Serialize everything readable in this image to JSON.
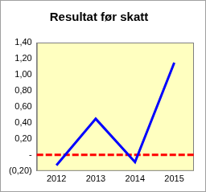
{
  "chart_data": {
    "type": "line",
    "title": "Resultat før skatt",
    "categories": [
      "2012",
      "2013",
      "2014",
      "2015"
    ],
    "values": [
      -0.13,
      0.45,
      -0.09,
      1.15
    ],
    "color": "#0000ff",
    "baseline": 0,
    "ylim": [
      -0.2,
      1.4
    ],
    "yticks": [
      {
        "value": -0.2,
        "label": "(0,20)"
      },
      {
        "value": 0,
        "label": "-"
      },
      {
        "value": 0.2,
        "label": "0,20"
      },
      {
        "value": 0.4,
        "label": "0,40"
      },
      {
        "value": 0.6,
        "label": "0,60"
      },
      {
        "value": 0.8,
        "label": "0,80"
      },
      {
        "value": 1.0,
        "label": "1,00"
      },
      {
        "value": 1.2,
        "label": "1,20"
      },
      {
        "value": 1.4,
        "label": "1,40"
      }
    ],
    "grid": false
  }
}
